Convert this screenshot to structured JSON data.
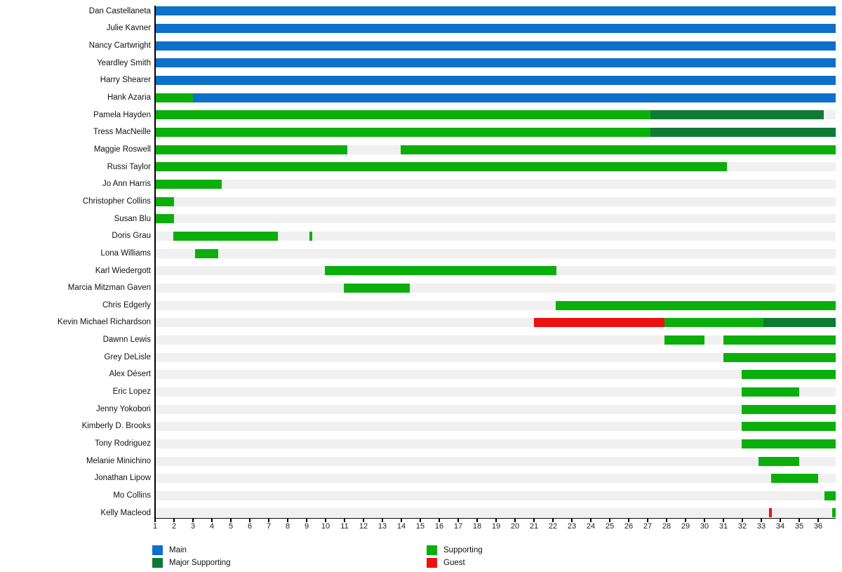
{
  "chart_data": {
    "type": "bar",
    "subtype": "gantt-timeline",
    "xlabel": "",
    "ylabel": "",
    "xlim": [
      1,
      36.93
    ],
    "x_ticks": [
      1,
      2,
      3,
      4,
      5,
      6,
      7,
      8,
      9,
      10,
      11,
      12,
      13,
      14,
      15,
      16,
      17,
      18,
      19,
      20,
      21,
      22,
      23,
      24,
      25,
      26,
      27,
      28,
      29,
      30,
      31,
      32,
      33,
      34,
      35,
      36
    ],
    "grid": false,
    "legend_position": "bottom",
    "track_color": "#f0f0f0",
    "axis_color": "#000000",
    "role_colors": {
      "Main": "#0d70c9",
      "Supporting": "#0baf0b",
      "Major Supporting": "#0e7b35",
      "Guest": "#ee1111"
    },
    "legend": [
      {
        "label": "Main",
        "role": "Main"
      },
      {
        "label": "Major Supporting",
        "role": "Major Supporting"
      },
      {
        "label": "Supporting",
        "role": "Supporting"
      },
      {
        "label": "Guest",
        "role": "Guest"
      }
    ],
    "rows": [
      {
        "name": "Dan Castellaneta",
        "segments": [
          {
            "start": 1,
            "end": 36.93,
            "role": "Main"
          }
        ]
      },
      {
        "name": "Julie Kavner",
        "segments": [
          {
            "start": 1,
            "end": 36.93,
            "role": "Main"
          }
        ]
      },
      {
        "name": "Nancy Cartwright",
        "segments": [
          {
            "start": 1,
            "end": 36.93,
            "role": "Main"
          }
        ]
      },
      {
        "name": "Yeardley Smith",
        "segments": [
          {
            "start": 1,
            "end": 36.93,
            "role": "Main"
          }
        ]
      },
      {
        "name": "Harry Shearer",
        "segments": [
          {
            "start": 1,
            "end": 36.93,
            "role": "Main"
          }
        ]
      },
      {
        "name": "Hank Azaria",
        "segments": [
          {
            "start": 1,
            "end": 3,
            "role": "Supporting"
          },
          {
            "start": 3,
            "end": 36.93,
            "role": "Main"
          }
        ]
      },
      {
        "name": "Pamela Hayden",
        "segments": [
          {
            "start": 1,
            "end": 27.15,
            "role": "Supporting"
          },
          {
            "start": 27.15,
            "end": 36.3,
            "role": "Major Supporting"
          }
        ]
      },
      {
        "name": "Tress MacNeille",
        "segments": [
          {
            "start": 1,
            "end": 27.15,
            "role": "Supporting"
          },
          {
            "start": 27.15,
            "end": 36.93,
            "role": "Major Supporting"
          }
        ]
      },
      {
        "name": "Maggie Roswell",
        "segments": [
          {
            "start": 1,
            "end": 11.15,
            "role": "Supporting"
          },
          {
            "start": 13.95,
            "end": 36.93,
            "role": "Supporting"
          }
        ]
      },
      {
        "name": "Russi Taylor",
        "segments": [
          {
            "start": 1,
            "end": 31.2,
            "role": "Supporting"
          }
        ]
      },
      {
        "name": "Jo Ann Harris",
        "segments": [
          {
            "start": 1,
            "end": 4.5,
            "role": "Supporting"
          }
        ]
      },
      {
        "name": "Christopher Collins",
        "segments": [
          {
            "start": 1,
            "end": 2,
            "role": "Supporting"
          }
        ]
      },
      {
        "name": "Susan Blu",
        "segments": [
          {
            "start": 1,
            "end": 2,
            "role": "Supporting"
          }
        ]
      },
      {
        "name": "Doris Grau",
        "segments": [
          {
            "start": 1.95,
            "end": 7.5,
            "role": "Supporting"
          },
          {
            "start": 9.15,
            "end": 9.3,
            "role": "Supporting"
          }
        ]
      },
      {
        "name": "Lona Williams",
        "segments": [
          {
            "start": 3.1,
            "end": 4.35,
            "role": "Supporting"
          }
        ]
      },
      {
        "name": "Karl Wiedergott",
        "segments": [
          {
            "start": 9.95,
            "end": 22.2,
            "role": "Supporting"
          }
        ]
      },
      {
        "name": "Marcia Mitzman Gaven",
        "segments": [
          {
            "start": 10.95,
            "end": 14.45,
            "role": "Supporting"
          }
        ]
      },
      {
        "name": "Chris Edgerly",
        "segments": [
          {
            "start": 22.15,
            "end": 36.93,
            "role": "Supporting"
          }
        ]
      },
      {
        "name": "Kevin Michael Richardson",
        "segments": [
          {
            "start": 21,
            "end": 27.9,
            "role": "Guest"
          },
          {
            "start": 27.9,
            "end": 33.1,
            "role": "Supporting"
          },
          {
            "start": 33.1,
            "end": 36.93,
            "role": "Major Supporting"
          }
        ]
      },
      {
        "name": "Dawnn Lewis",
        "segments": [
          {
            "start": 27.9,
            "end": 30,
            "role": "Supporting"
          },
          {
            "start": 31,
            "end": 36.93,
            "role": "Supporting"
          }
        ]
      },
      {
        "name": "Grey DeLisle",
        "segments": [
          {
            "start": 31,
            "end": 36.93,
            "role": "Supporting"
          }
        ]
      },
      {
        "name": "Alex Désert",
        "segments": [
          {
            "start": 31.95,
            "end": 36.93,
            "role": "Supporting"
          }
        ]
      },
      {
        "name": "Eric Lopez",
        "segments": [
          {
            "start": 31.95,
            "end": 35,
            "role": "Supporting"
          }
        ]
      },
      {
        "name": "Jenny Yokobori",
        "segments": [
          {
            "start": 31.95,
            "end": 36.93,
            "role": "Supporting"
          }
        ]
      },
      {
        "name": "Kimberly D. Brooks",
        "segments": [
          {
            "start": 31.95,
            "end": 36.93,
            "role": "Supporting"
          }
        ]
      },
      {
        "name": "Tony Rodriguez",
        "segments": [
          {
            "start": 31.95,
            "end": 36.93,
            "role": "Supporting"
          }
        ]
      },
      {
        "name": "Melanie Minichino",
        "segments": [
          {
            "start": 32.85,
            "end": 35,
            "role": "Supporting"
          }
        ]
      },
      {
        "name": "Jonathan Lipow",
        "segments": [
          {
            "start": 33.5,
            "end": 36,
            "role": "Supporting"
          }
        ]
      },
      {
        "name": "Mo Collins",
        "segments": [
          {
            "start": 36.35,
            "end": 36.93,
            "role": "Supporting"
          }
        ]
      },
      {
        "name": "Kelly Macleod",
        "segments": [
          {
            "start": 33.4,
            "end": 33.55,
            "role": "Guest"
          },
          {
            "start": 36.75,
            "end": 36.93,
            "role": "Supporting"
          }
        ]
      }
    ]
  }
}
